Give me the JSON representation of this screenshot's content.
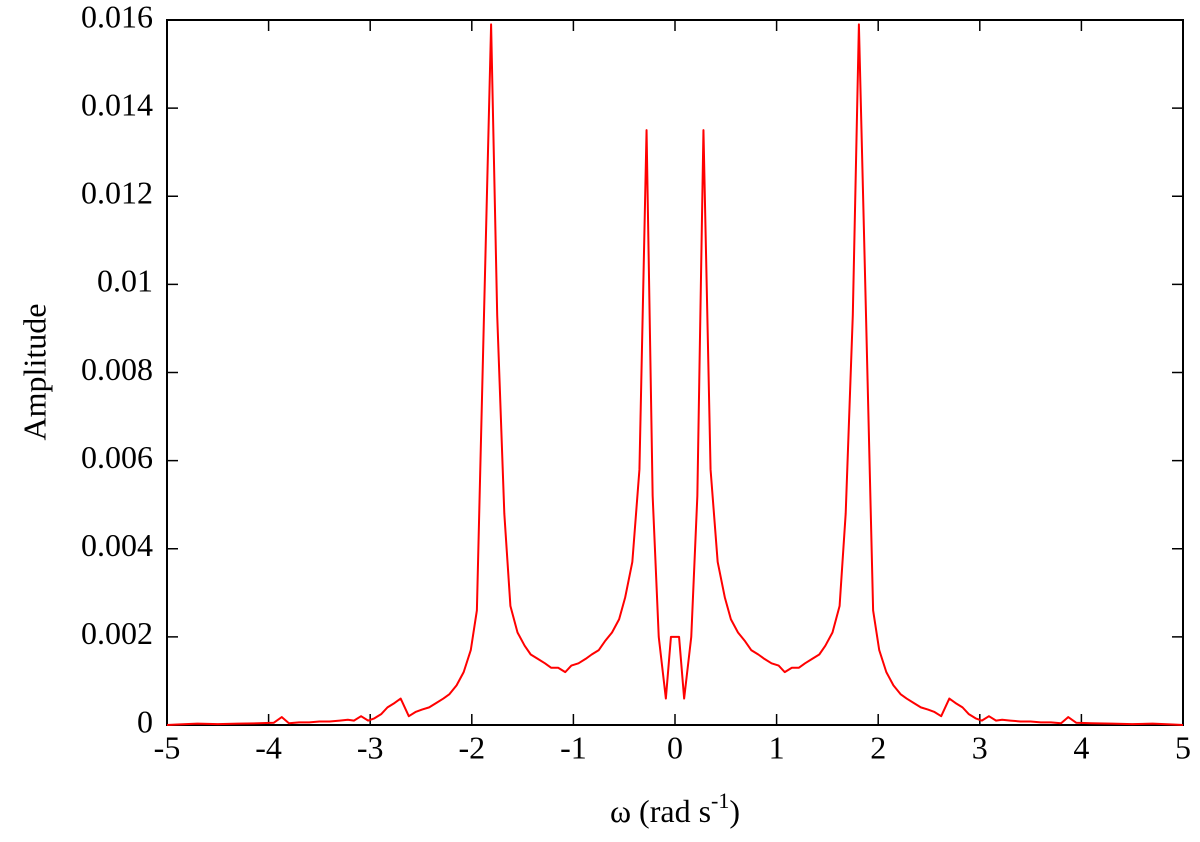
{
  "chart_data": {
    "type": "line",
    "ylabel": "Amplitude",
    "xlabel_parts": [
      "ω (rad s",
      "-1",
      ")"
    ],
    "color": "#ff0000",
    "xlim": [
      -5,
      5
    ],
    "xticks": [
      -5,
      -4,
      -3,
      -2,
      -1,
      0,
      1,
      2,
      3,
      4,
      5
    ],
    "ylim": [
      0,
      0.016
    ],
    "yticks": [
      0,
      0.002,
      0.004,
      0.006,
      0.008,
      0.01,
      0.012,
      0.014,
      0.016
    ],
    "grid": false,
    "x": [
      -5,
      -4.9,
      -4.7,
      -4.5,
      -4.3,
      -4.1,
      -3.95,
      -3.87,
      -3.8,
      -3.7,
      -3.6,
      -3.5,
      -3.4,
      -3.3,
      -3.22,
      -3.16,
      -3.09,
      -3.02,
      -2.96,
      -2.89,
      -2.83,
      -2.76,
      -2.7,
      -2.62,
      -2.55,
      -2.49,
      -2.42,
      -2.35,
      -2.28,
      -2.22,
      -2.15,
      -2.08,
      -2.01,
      -1.95,
      -1.88,
      -1.81,
      -1.75,
      -1.68,
      -1.62,
      -1.55,
      -1.48,
      -1.42,
      -1.35,
      -1.28,
      -1.22,
      -1.15,
      -1.08,
      -1.02,
      -0.95,
      -0.88,
      -0.82,
      -0.75,
      -0.69,
      -0.62,
      -0.55,
      -0.49,
      -0.42,
      -0.35,
      -0.28,
      -0.22,
      -0.16,
      -0.09,
      -0.04,
      0.04,
      0.09,
      0.16,
      0.22,
      0.28,
      0.35,
      0.42,
      0.49,
      0.55,
      0.62,
      0.69,
      0.75,
      0.82,
      0.88,
      0.95,
      1.02,
      1.08,
      1.15,
      1.22,
      1.28,
      1.35,
      1.42,
      1.48,
      1.55,
      1.62,
      1.68,
      1.75,
      1.81,
      1.88,
      1.95,
      2.01,
      2.08,
      2.15,
      2.22,
      2.28,
      2.35,
      2.42,
      2.49,
      2.55,
      2.62,
      2.7,
      2.76,
      2.83,
      2.89,
      2.96,
      3.02,
      3.09,
      3.16,
      3.22,
      3.3,
      3.4,
      3.5,
      3.6,
      3.7,
      3.8,
      3.87,
      3.95,
      4.1,
      4.3,
      4.5,
      4.7,
      4.9,
      5
    ],
    "values": [
      0,
      1e-05,
      3e-05,
      2e-05,
      3e-05,
      4e-05,
      5e-05,
      0.00018,
      4e-05,
      6e-05,
      6e-05,
      8e-05,
      8e-05,
      0.0001,
      0.00012,
      0.0001,
      0.0002,
      0.0001,
      0.00015,
      0.00025,
      0.0004,
      0.0005,
      0.0006,
      0.0002,
      0.0003,
      0.00035,
      0.0004,
      0.0005,
      0.0006,
      0.0007,
      0.0009,
      0.0012,
      0.0017,
      0.0026,
      0.0093,
      0.0159,
      0.0093,
      0.0048,
      0.0027,
      0.0021,
      0.0018,
      0.0016,
      0.0015,
      0.0014,
      0.0013,
      0.0013,
      0.0012,
      0.00135,
      0.0014,
      0.0015,
      0.0016,
      0.0017,
      0.0019,
      0.0021,
      0.0024,
      0.0029,
      0.0037,
      0.0058,
      0.0135,
      0.0052,
      0.002,
      0.0006,
      0.002,
      0.002,
      0.0006,
      0.002,
      0.0052,
      0.0135,
      0.0058,
      0.0037,
      0.0029,
      0.0024,
      0.0021,
      0.0019,
      0.0017,
      0.0016,
      0.0015,
      0.0014,
      0.00135,
      0.0012,
      0.0013,
      0.0013,
      0.0014,
      0.0015,
      0.0016,
      0.0018,
      0.0021,
      0.0027,
      0.0048,
      0.0093,
      0.0159,
      0.0093,
      0.0026,
      0.0017,
      0.0012,
      0.0009,
      0.0007,
      0.0006,
      0.0005,
      0.0004,
      0.00035,
      0.0003,
      0.0002,
      0.0006,
      0.0005,
      0.0004,
      0.00025,
      0.00015,
      0.0001,
      0.0002,
      0.0001,
      0.00012,
      0.0001,
      8e-05,
      8e-05,
      6e-05,
      6e-05,
      4e-05,
      0.00018,
      5e-05,
      4e-05,
      3e-05,
      2e-05,
      3e-05,
      1e-05,
      0
    ]
  }
}
